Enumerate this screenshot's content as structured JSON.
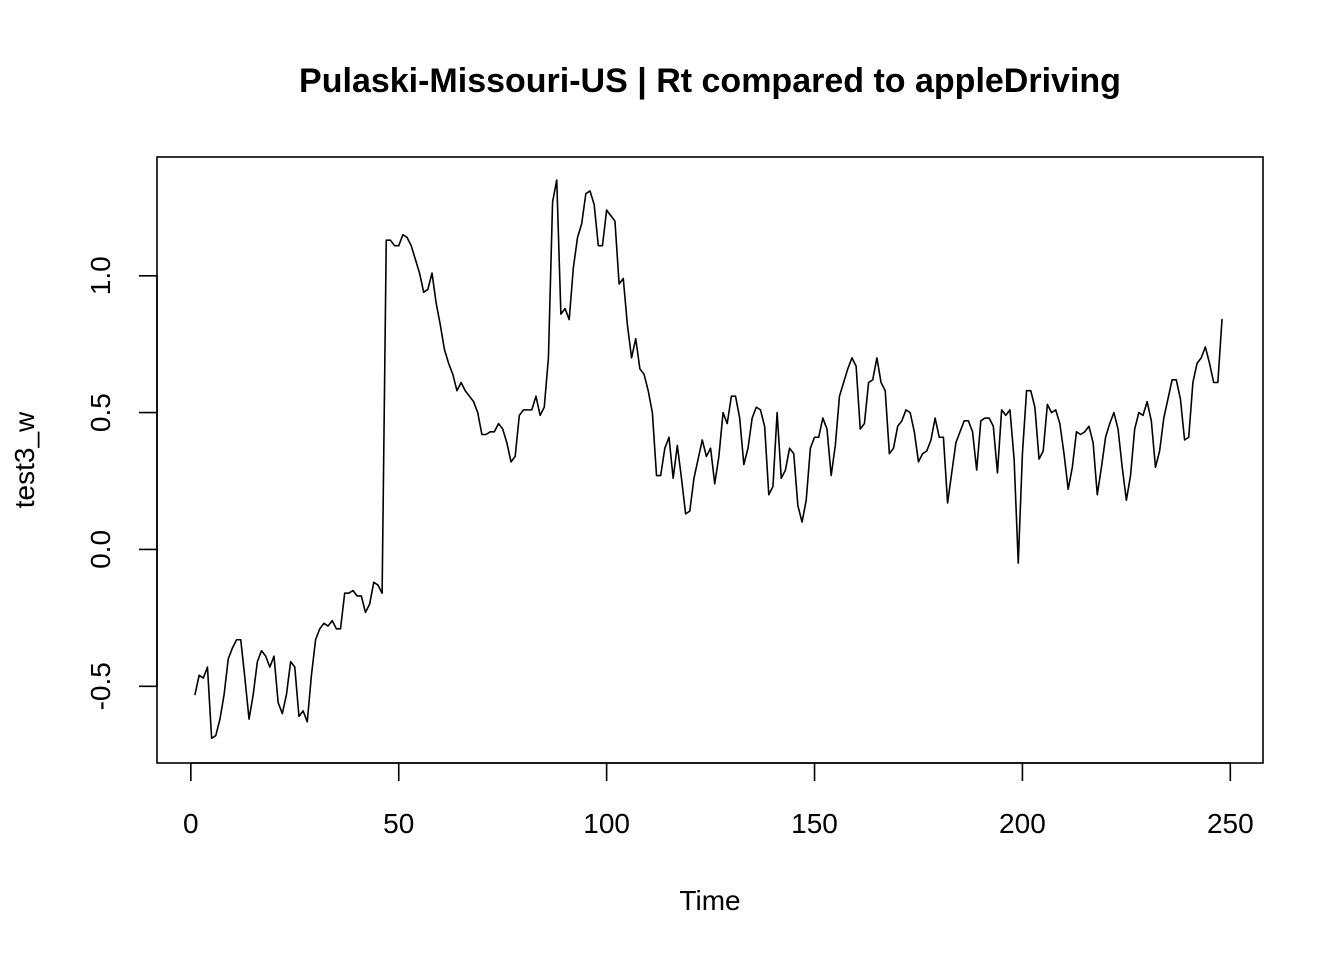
{
  "chart_data": {
    "type": "line",
    "title": "Pulaski-Missouri-US | Rt compared to appleDriving",
    "xlabel": "Time",
    "ylabel": "test3_w",
    "xlim": [
      1,
      248
    ],
    "ylim": [
      -0.7,
      1.35
    ],
    "x_ticks": [
      0,
      50,
      100,
      150,
      200,
      250
    ],
    "x_tick_labels": [
      "0",
      "50",
      "100",
      "150",
      "200",
      "250"
    ],
    "y_ticks": [
      -0.5,
      0.0,
      0.5,
      1.0
    ],
    "y_tick_labels": [
      "-0.5",
      "0.0",
      "0.5",
      "1.0"
    ],
    "grid": false,
    "line_color": "#000000",
    "series": [
      {
        "x": [
          1,
          2,
          3,
          4,
          5,
          6,
          7,
          8,
          9,
          10,
          11,
          12,
          13,
          14,
          15,
          16,
          17,
          18,
          19,
          20,
          21,
          22,
          23,
          24,
          25,
          26,
          27,
          28,
          29,
          30,
          31,
          32,
          33,
          34,
          35,
          36,
          37,
          38,
          39,
          40,
          41,
          42,
          43,
          44,
          45,
          46,
          47,
          48,
          49,
          50,
          51,
          52,
          53,
          54,
          55,
          56,
          57,
          58,
          59,
          60,
          61,
          62,
          63,
          64,
          65,
          66,
          67,
          68,
          69,
          70,
          71,
          72,
          73,
          74,
          75,
          76,
          77,
          78,
          79,
          80,
          81,
          82,
          83,
          84,
          85,
          86,
          87,
          88,
          89,
          90,
          91,
          92,
          93,
          94,
          95,
          96,
          97,
          98,
          99,
          100,
          101,
          102,
          103,
          104,
          105,
          106,
          107,
          108,
          109,
          110,
          111,
          112,
          113,
          114,
          115,
          116,
          117,
          118,
          119,
          120,
          121,
          122,
          123,
          124,
          125,
          126,
          127,
          128,
          129,
          130,
          131,
          132,
          133,
          134,
          135,
          136,
          137,
          138,
          139,
          140,
          141,
          142,
          143,
          144,
          145,
          146,
          147,
          148,
          149,
          150,
          151,
          152,
          153,
          154,
          155,
          156,
          157,
          158,
          159,
          160,
          161,
          162,
          163,
          164,
          165,
          166,
          167,
          168,
          169,
          170,
          171,
          172,
          173,
          174,
          175,
          176,
          177,
          178,
          179,
          180,
          181,
          182,
          183,
          184,
          185,
          186,
          187,
          188,
          189,
          190,
          191,
          192,
          193,
          194,
          195,
          196,
          197,
          198,
          199,
          200,
          201,
          202,
          203,
          204,
          205,
          206,
          207,
          208,
          209,
          210,
          211,
          212,
          213,
          214,
          215,
          216,
          217,
          218,
          219,
          220,
          221,
          222,
          223,
          224,
          225,
          226,
          227,
          228,
          229,
          230,
          231,
          232,
          233,
          234,
          235,
          236,
          237,
          238,
          239,
          240,
          241,
          242,
          243,
          244,
          245,
          246,
          247,
          248
        ],
        "values": [
          -0.53,
          -0.46,
          -0.47,
          -0.43,
          -0.69,
          -0.68,
          -0.62,
          -0.53,
          -0.4,
          -0.36,
          -0.33,
          -0.33,
          -0.47,
          -0.62,
          -0.53,
          -0.41,
          -0.37,
          -0.39,
          -0.43,
          -0.39,
          -0.56,
          -0.6,
          -0.53,
          -0.41,
          -0.43,
          -0.61,
          -0.59,
          -0.63,
          -0.46,
          -0.33,
          -0.29,
          -0.27,
          -0.28,
          -0.26,
          -0.29,
          -0.29,
          -0.16,
          -0.16,
          -0.15,
          -0.17,
          -0.17,
          -0.23,
          -0.2,
          -0.12,
          -0.13,
          -0.16,
          1.13,
          1.13,
          1.11,
          1.11,
          1.15,
          1.14,
          1.11,
          1.06,
          1.01,
          0.94,
          0.95,
          1.01,
          0.9,
          0.82,
          0.73,
          0.68,
          0.64,
          0.58,
          0.61,
          0.58,
          0.56,
          0.54,
          0.5,
          0.42,
          0.42,
          0.43,
          0.43,
          0.46,
          0.44,
          0.39,
          0.32,
          0.34,
          0.49,
          0.51,
          0.51,
          0.51,
          0.56,
          0.49,
          0.52,
          0.7,
          1.27,
          1.35,
          0.86,
          0.88,
          0.84,
          1.03,
          1.14,
          1.19,
          1.3,
          1.31,
          1.26,
          1.11,
          1.11,
          1.24,
          1.22,
          1.2,
          0.97,
          0.99,
          0.82,
          0.7,
          0.77,
          0.66,
          0.64,
          0.58,
          0.5,
          0.27,
          0.27,
          0.37,
          0.41,
          0.26,
          0.38,
          0.26,
          0.13,
          0.14,
          0.26,
          0.33,
          0.4,
          0.34,
          0.37,
          0.24,
          0.34,
          0.5,
          0.46,
          0.56,
          0.56,
          0.48,
          0.31,
          0.37,
          0.48,
          0.52,
          0.51,
          0.45,
          0.2,
          0.23,
          0.5,
          0.26,
          0.29,
          0.37,
          0.35,
          0.16,
          0.1,
          0.18,
          0.37,
          0.41,
          0.41,
          0.48,
          0.44,
          0.27,
          0.38,
          0.56,
          0.61,
          0.66,
          0.7,
          0.67,
          0.44,
          0.46,
          0.61,
          0.62,
          0.7,
          0.61,
          0.58,
          0.35,
          0.37,
          0.45,
          0.47,
          0.51,
          0.5,
          0.43,
          0.32,
          0.35,
          0.36,
          0.4,
          0.48,
          0.41,
          0.41,
          0.17,
          0.28,
          0.39,
          0.43,
          0.47,
          0.47,
          0.43,
          0.29,
          0.47,
          0.48,
          0.48,
          0.45,
          0.28,
          0.51,
          0.49,
          0.51,
          0.33,
          -0.05,
          0.35,
          0.58,
          0.58,
          0.52,
          0.33,
          0.36,
          0.53,
          0.5,
          0.51,
          0.46,
          0.35,
          0.22,
          0.3,
          0.43,
          0.42,
          0.43,
          0.45,
          0.39,
          0.2,
          0.3,
          0.41,
          0.46,
          0.5,
          0.44,
          0.3,
          0.18,
          0.27,
          0.44,
          0.5,
          0.49,
          0.54,
          0.47,
          0.3,
          0.36,
          0.48,
          0.55,
          0.62,
          0.62,
          0.55,
          0.4,
          0.41,
          0.61,
          0.68,
          0.7,
          0.74,
          0.68,
          0.61,
          0.61,
          0.84
        ]
      }
    ]
  }
}
